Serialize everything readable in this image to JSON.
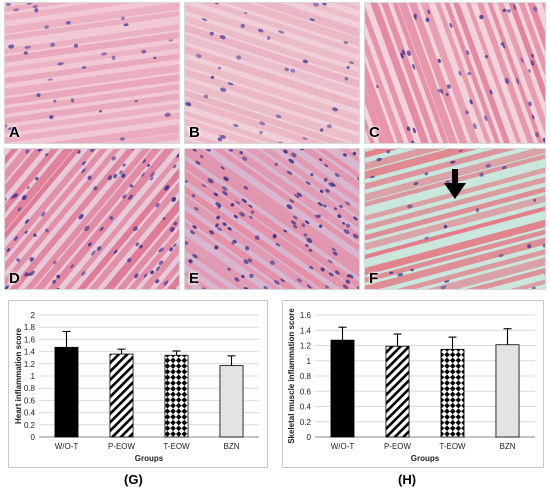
{
  "micrographs": [
    {
      "label": "A",
      "background": "#f2c8d4",
      "fiber": "#e8a3b8",
      "nucleus": "#5a4aa0",
      "density": 60
    },
    {
      "label": "B",
      "background": "#f1cfd8",
      "fiber": "#e9b0c0",
      "nucleus": "#5a4aa0",
      "density": 80
    },
    {
      "label": "C",
      "background": "#f4d2dc",
      "fiber": "#e07a95",
      "nucleus": "#4d3f96",
      "density": 90
    },
    {
      "label": "D",
      "background": "#e7c9d9",
      "fiber": "#df6f8c",
      "nucleus": "#3f3390",
      "density": 180
    },
    {
      "label": "E",
      "background": "#d9b6cf",
      "fiber": "#e58aa2",
      "nucleus": "#3c3088",
      "density": 260
    },
    {
      "label": "F",
      "background": "#c9e7dc",
      "fiber": "#e6707f",
      "nucleus": "#4a3d92",
      "density": 40
    }
  ],
  "panel_f_arrow": "down-arrow-icon",
  "chart_data": [
    {
      "type": "bar",
      "panel": "(G)",
      "ylabel": "Heart inflammation score",
      "xlabel": "Groups",
      "categories": [
        "W/O-T",
        "P-EOW",
        "T-EOW",
        "BZN"
      ],
      "values": [
        1.47,
        1.36,
        1.34,
        1.17
      ],
      "errors": [
        0.26,
        0.08,
        0.07,
        0.16
      ],
      "fills": [
        "solid-black",
        "diagonal-hatch",
        "checkerboard",
        "light-gray"
      ],
      "ylim": [
        0,
        2
      ],
      "yticks": [
        "0",
        "0.2",
        "0.4",
        "0.6",
        "0.8",
        "1",
        "1.2",
        "1.4",
        "1.6",
        "1.8",
        "2"
      ],
      "grid": true
    },
    {
      "type": "bar",
      "panel": "(H)",
      "ylabel": "Skeletal muscle inflammation score",
      "xlabel": "Groups",
      "categories": [
        "W/O-T",
        "P-EOW",
        "T-EOW",
        "BZN"
      ],
      "values": [
        1.27,
        1.19,
        1.15,
        1.21
      ],
      "errors": [
        0.17,
        0.16,
        0.16,
        0.21
      ],
      "fills": [
        "solid-black",
        "diagonal-hatch",
        "checkerboard",
        "light-gray"
      ],
      "ylim": [
        0,
        1.6
      ],
      "yticks": [
        "0",
        "0.2",
        "0.4",
        "0.6",
        "0.8",
        "1",
        "1.2",
        "1.4",
        "1.6"
      ],
      "grid": true
    }
  ]
}
